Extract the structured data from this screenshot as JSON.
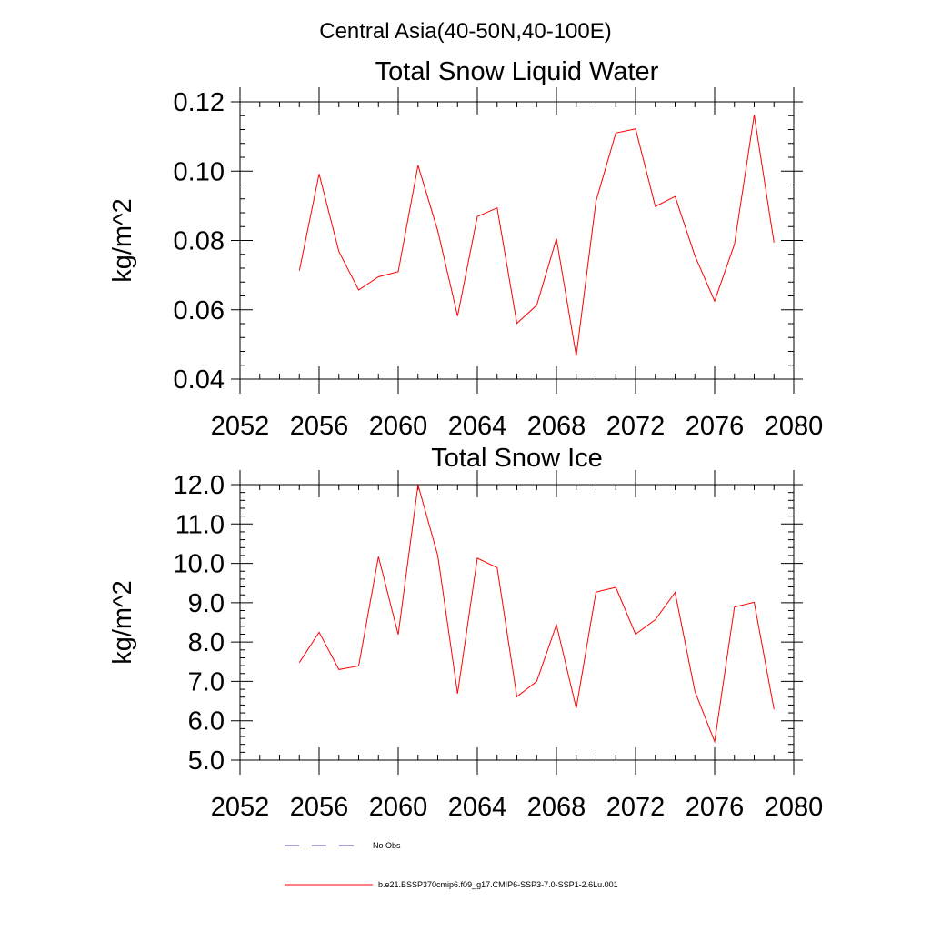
{
  "figure": {
    "title": "Central Asia(40-50N,40-100E)"
  },
  "legend": {
    "items": [
      {
        "label": "No Obs",
        "color": "#4a4aa8",
        "dash": true
      },
      {
        "label": "b.e21.BSSP370cmip6.f09_g17.CMIP6-SSP3-7.0-SSP1-2.6Lu.001",
        "color": "#ff0000",
        "dash": false
      }
    ]
  },
  "chart_data": [
    {
      "type": "line",
      "title": "Total Snow Liquid Water",
      "ylabel": "kg/m^2",
      "xlabel": "",
      "xlim": [
        2052,
        2080
      ],
      "ylim": [
        0.04,
        0.12
      ],
      "xticks": [
        2052,
        2056,
        2060,
        2064,
        2068,
        2072,
        2076,
        2080
      ],
      "yticks": [
        0.04,
        0.06,
        0.08,
        0.1,
        0.12
      ],
      "ytick_labels": [
        "0.04",
        "0.06",
        "0.08",
        "0.10",
        "0.12"
      ],
      "x_minor_step": 1,
      "y_minor_step": 0.004,
      "series": [
        {
          "color": "#ff0000",
          "x": [
            2055,
            2056,
            2057,
            2058,
            2059,
            2060,
            2061,
            2062,
            2063,
            2064,
            2065,
            2066,
            2067,
            2068,
            2069,
            2070,
            2071,
            2072,
            2073,
            2074,
            2075,
            2076,
            2077,
            2078,
            2079
          ],
          "values": [
            0.0713,
            0.0992,
            0.0768,
            0.0657,
            0.0695,
            0.071,
            0.1017,
            0.0828,
            0.0582,
            0.0869,
            0.0894,
            0.0561,
            0.0613,
            0.0805,
            0.0467,
            0.0913,
            0.111,
            0.1122,
            0.0898,
            0.0927,
            0.0756,
            0.0625,
            0.0789,
            0.1162,
            0.0794
          ]
        }
      ]
    },
    {
      "type": "line",
      "title": "Total Snow Ice",
      "ylabel": "kg/m^2",
      "xlabel": "",
      "xlim": [
        2052,
        2080
      ],
      "ylim": [
        5.0,
        12.0
      ],
      "xticks": [
        2052,
        2056,
        2060,
        2064,
        2068,
        2072,
        2076,
        2080
      ],
      "yticks": [
        5,
        6,
        7,
        8,
        9,
        10,
        11,
        12
      ],
      "ytick_labels": [
        "5.0",
        "6.0",
        "7.0",
        "8.0",
        "9.0",
        "10.0",
        "11.0",
        "12.0"
      ],
      "x_minor_step": 1,
      "y_minor_step": 0.2,
      "series": [
        {
          "color": "#ff0000",
          "x": [
            2055,
            2056,
            2057,
            2058,
            2059,
            2060,
            2061,
            2062,
            2063,
            2064,
            2065,
            2066,
            2067,
            2068,
            2069,
            2070,
            2071,
            2072,
            2073,
            2074,
            2075,
            2076,
            2077,
            2078,
            2079
          ],
          "values": [
            7.48,
            8.25,
            7.3,
            7.39,
            10.17,
            8.19,
            11.99,
            10.2,
            6.69,
            10.13,
            9.89,
            6.61,
            7.0,
            8.44,
            6.32,
            9.27,
            9.39,
            8.2,
            8.57,
            9.26,
            6.75,
            5.47,
            8.89,
            9.01,
            6.29
          ]
        }
      ]
    }
  ]
}
